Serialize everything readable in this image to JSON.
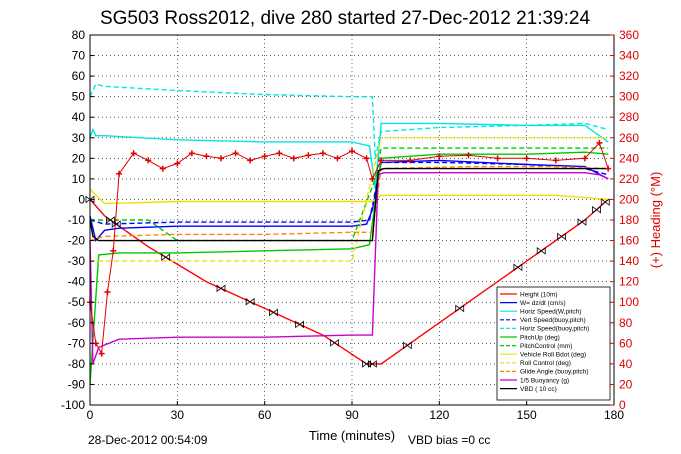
{
  "title": "SG503 Ross2012, dive 280 started 27-Dec-2012 21:39:24",
  "footer_left": "28-Dec-2012 00:54:09",
  "footer_right": "VBD bias =0 cc",
  "chart_data": {
    "type": "line",
    "xlabel": "Time (minutes)",
    "ylabel": "",
    "y2label": "(+) Heading (°M)",
    "xlim": [
      0,
      180
    ],
    "ylim": [
      -100,
      80
    ],
    "y2lim": [
      0,
      360
    ],
    "xticks": [
      0,
      30,
      60,
      90,
      120,
      150,
      180
    ],
    "yticks": [
      -100,
      -90,
      -80,
      -70,
      -60,
      -50,
      -40,
      -30,
      -20,
      -10,
      0,
      10,
      20,
      30,
      40,
      50,
      60,
      70,
      80
    ],
    "y2ticks": [
      0,
      20,
      40,
      60,
      80,
      100,
      120,
      140,
      160,
      180,
      200,
      220,
      240,
      260,
      280,
      300,
      320,
      340,
      360
    ],
    "grid": true,
    "legend_position": "bottom-right",
    "series": [
      {
        "name": "Height (10m)",
        "color": "#ff0000",
        "marker": "none",
        "axis": "left",
        "x": [
          0,
          5,
          20,
          40,
          60,
          80,
          95,
          100,
          110,
          130,
          150,
          170,
          178
        ],
        "y": [
          0,
          -8,
          -23,
          -40,
          -53,
          -66,
          -80,
          -80,
          -70,
          -50,
          -30,
          -10,
          0
        ]
      },
      {
        "name": "W= dz/dt (cm/s)",
        "color": "#0000ff",
        "marker": "none",
        "axis": "left",
        "x": [
          0,
          2,
          5,
          10,
          30,
          60,
          90,
          95,
          97,
          100,
          120,
          150,
          170,
          178
        ],
        "y": [
          -8,
          -20,
          -15,
          -14,
          -13,
          -13,
          -13,
          -12,
          -5,
          18,
          19,
          17,
          16,
          10
        ]
      },
      {
        "name": "Horiz Speed(W,pitch)",
        "color": "#00e5e5",
        "marker": "none",
        "axis": "left",
        "x": [
          0,
          1,
          2,
          5,
          30,
          60,
          90,
          96,
          98,
          100,
          120,
          150,
          170,
          178
        ],
        "y": [
          30,
          34,
          31,
          31,
          29,
          28,
          28,
          26,
          5,
          37,
          37,
          36,
          36,
          28
        ]
      },
      {
        "name": "Vert Speed(buoy,pitch)",
        "color": "#0000ff",
        "marker": "dash",
        "axis": "left",
        "x": [
          0,
          5,
          30,
          60,
          90,
          96,
          100,
          120,
          150,
          170,
          178
        ],
        "y": [
          -10,
          -12,
          -11,
          -11,
          -11,
          -10,
          18,
          18,
          17,
          15,
          12
        ]
      },
      {
        "name": "Horiz Speed(buoy,pitch)",
        "color": "#00e5e5",
        "marker": "dash",
        "axis": "left",
        "x": [
          0,
          2,
          5,
          30,
          60,
          90,
          97,
          98,
          100,
          120,
          150,
          170,
          178
        ],
        "y": [
          50,
          56,
          55,
          53,
          51,
          50,
          50,
          20,
          33,
          35,
          36,
          37,
          34
        ]
      },
      {
        "name": "PitchUp (deg)",
        "color": "#00c800",
        "marker": "none",
        "axis": "left",
        "x": [
          0,
          3,
          10,
          30,
          60,
          90,
          96,
          100,
          120,
          150,
          170,
          178
        ],
        "y": [
          -90,
          -27,
          -26,
          -26,
          -25,
          -24,
          -22,
          20,
          22,
          22,
          23,
          22
        ]
      },
      {
        "name": "PitchControl (mm)",
        "color": "#00c800",
        "marker": "dash",
        "axis": "left",
        "x": [
          0,
          5,
          20,
          30,
          60,
          90,
          98,
          100,
          120,
          150,
          178
        ],
        "y": [
          -10,
          -10,
          -10,
          -20,
          -20,
          -20,
          10,
          25,
          25,
          25,
          25
        ]
      },
      {
        "name": "Vehicle Roll Bdot (deg)",
        "color": "#f0e000",
        "marker": "none",
        "axis": "left",
        "x": [
          0,
          5,
          30,
          60,
          90,
          97,
          100,
          130,
          160,
          178
        ],
        "y": [
          5,
          -2,
          -1,
          -1,
          -1,
          -1,
          2,
          2,
          2,
          0
        ]
      },
      {
        "name": "Roll Control (deg)",
        "color": "#f0e000",
        "marker": "dash",
        "axis": "left",
        "x": [
          0,
          5,
          30,
          60,
          90,
          100,
          130,
          160,
          178
        ],
        "y": [
          -30,
          -30,
          -30,
          -30,
          -30,
          30,
          30,
          30,
          30
        ]
      },
      {
        "name": "Glide Angle (buoy,pitch)",
        "color": "#ff8800",
        "marker": "dash",
        "axis": "left",
        "x": [
          0,
          5,
          30,
          60,
          90,
          97,
          100,
          130,
          160,
          178
        ],
        "y": [
          -20,
          -18,
          -17,
          -17,
          -16,
          -16,
          15,
          16,
          16,
          15
        ]
      },
      {
        "name": "1/5 Buoyancy (g)",
        "color": "#cc00cc",
        "marker": "none",
        "axis": "left",
        "x": [
          0,
          1,
          3,
          10,
          30,
          60,
          90,
          97,
          99,
          101,
          120,
          150,
          170,
          175,
          178
        ],
        "y": [
          -20,
          -80,
          -72,
          -68,
          -67,
          -67,
          -66,
          -66,
          12,
          13,
          13,
          13,
          13,
          12,
          10
        ]
      },
      {
        "name": "VBD ( 10 cc)",
        "color": "#000000",
        "marker": "none",
        "axis": "left",
        "x": [
          0,
          1,
          3,
          10,
          30,
          60,
          90,
          97,
          99,
          101,
          120,
          150,
          178
        ],
        "y": [
          -10,
          -18,
          -20,
          -20,
          -20,
          -20,
          -20,
          -20,
          14,
          15,
          15,
          15,
          15
        ]
      },
      {
        "name": "(+) Heading (°M)",
        "color": "#e00000",
        "marker": "plus",
        "axis": "right",
        "x": [
          0,
          2,
          4,
          6,
          8,
          10,
          15,
          20,
          25,
          30,
          35,
          40,
          45,
          50,
          55,
          60,
          65,
          70,
          75,
          80,
          85,
          90,
          95,
          97,
          100,
          110,
          120,
          130,
          140,
          150,
          160,
          170,
          175,
          178
        ],
        "y": [
          100,
          60,
          50,
          110,
          150,
          225,
          245,
          238,
          230,
          235,
          245,
          242,
          240,
          245,
          238,
          242,
          245,
          240,
          243,
          245,
          240,
          247,
          240,
          220,
          238,
          238,
          242,
          243,
          240,
          240,
          238,
          240,
          255,
          230
        ]
      }
    ],
    "glider_marker_times": [
      0,
      7,
      9,
      26,
      45,
      55,
      63,
      72,
      84,
      95,
      97,
      109,
      127,
      147,
      155,
      162,
      169,
      174,
      177
    ]
  }
}
